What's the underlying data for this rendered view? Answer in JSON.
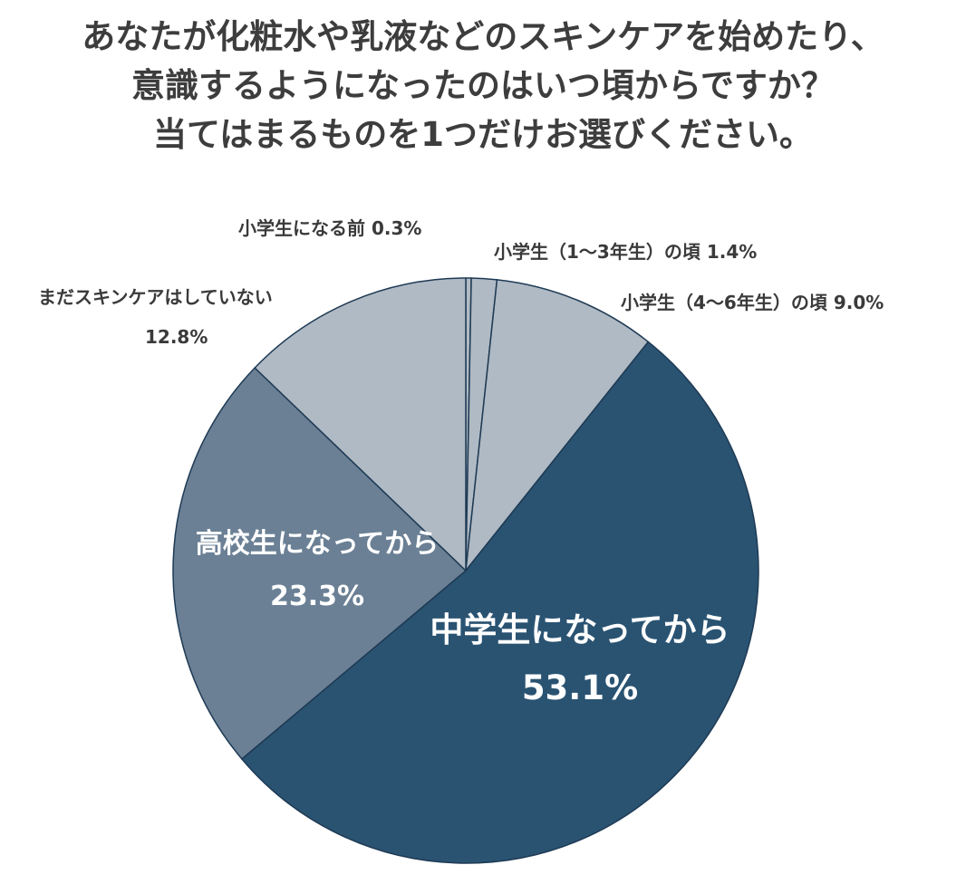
{
  "chart_data": {
    "type": "pie",
    "title_lines": [
      "あなたが化粧水や乳液などのスキンケアを始めたり、",
      "意識するようになったのはいつ頃からですか？",
      "当てはまるものを1つだけお選びください。"
    ],
    "slices": [
      {
        "label": "小学生になる前",
        "value": 0.3,
        "value_text": "0.3%",
        "color": "#b0bac4"
      },
      {
        "label": "小学生（1〜3年生）の頃",
        "value": 1.4,
        "value_text": "1.4%",
        "color": "#b0bac4"
      },
      {
        "label": "小学生（4〜6年生）の頃",
        "value": 9.0,
        "value_text": "9.0%",
        "color": "#b0bac4"
      },
      {
        "label": "中学生になってから",
        "value": 53.1,
        "value_text": "53.1%",
        "color": "#2a5372"
      },
      {
        "label": "高校生になってから",
        "value": 23.3,
        "value_text": "23.3%",
        "color": "#6b8095"
      },
      {
        "label": "まだスキンケアはしていない",
        "value": 12.8,
        "value_text": "12.8%",
        "color": "#b0bac4"
      }
    ],
    "edge_color": "#1e3a54"
  }
}
